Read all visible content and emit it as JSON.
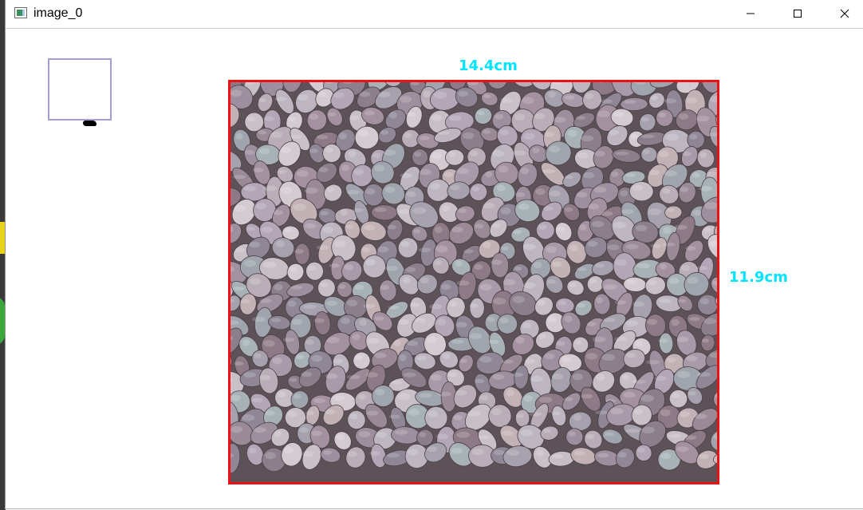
{
  "window": {
    "title": "image_0",
    "icon": "opencv-window-icon",
    "controls": {
      "minimize": "minimize-icon",
      "maximize": "maximize-icon",
      "close": "close-icon"
    }
  },
  "measurement": {
    "width_label": "14.4cm",
    "height_label": "11.9cm",
    "label_color": "#00e5ff",
    "box_color": "#ee1111",
    "reference_color": "#a89cd6"
  }
}
